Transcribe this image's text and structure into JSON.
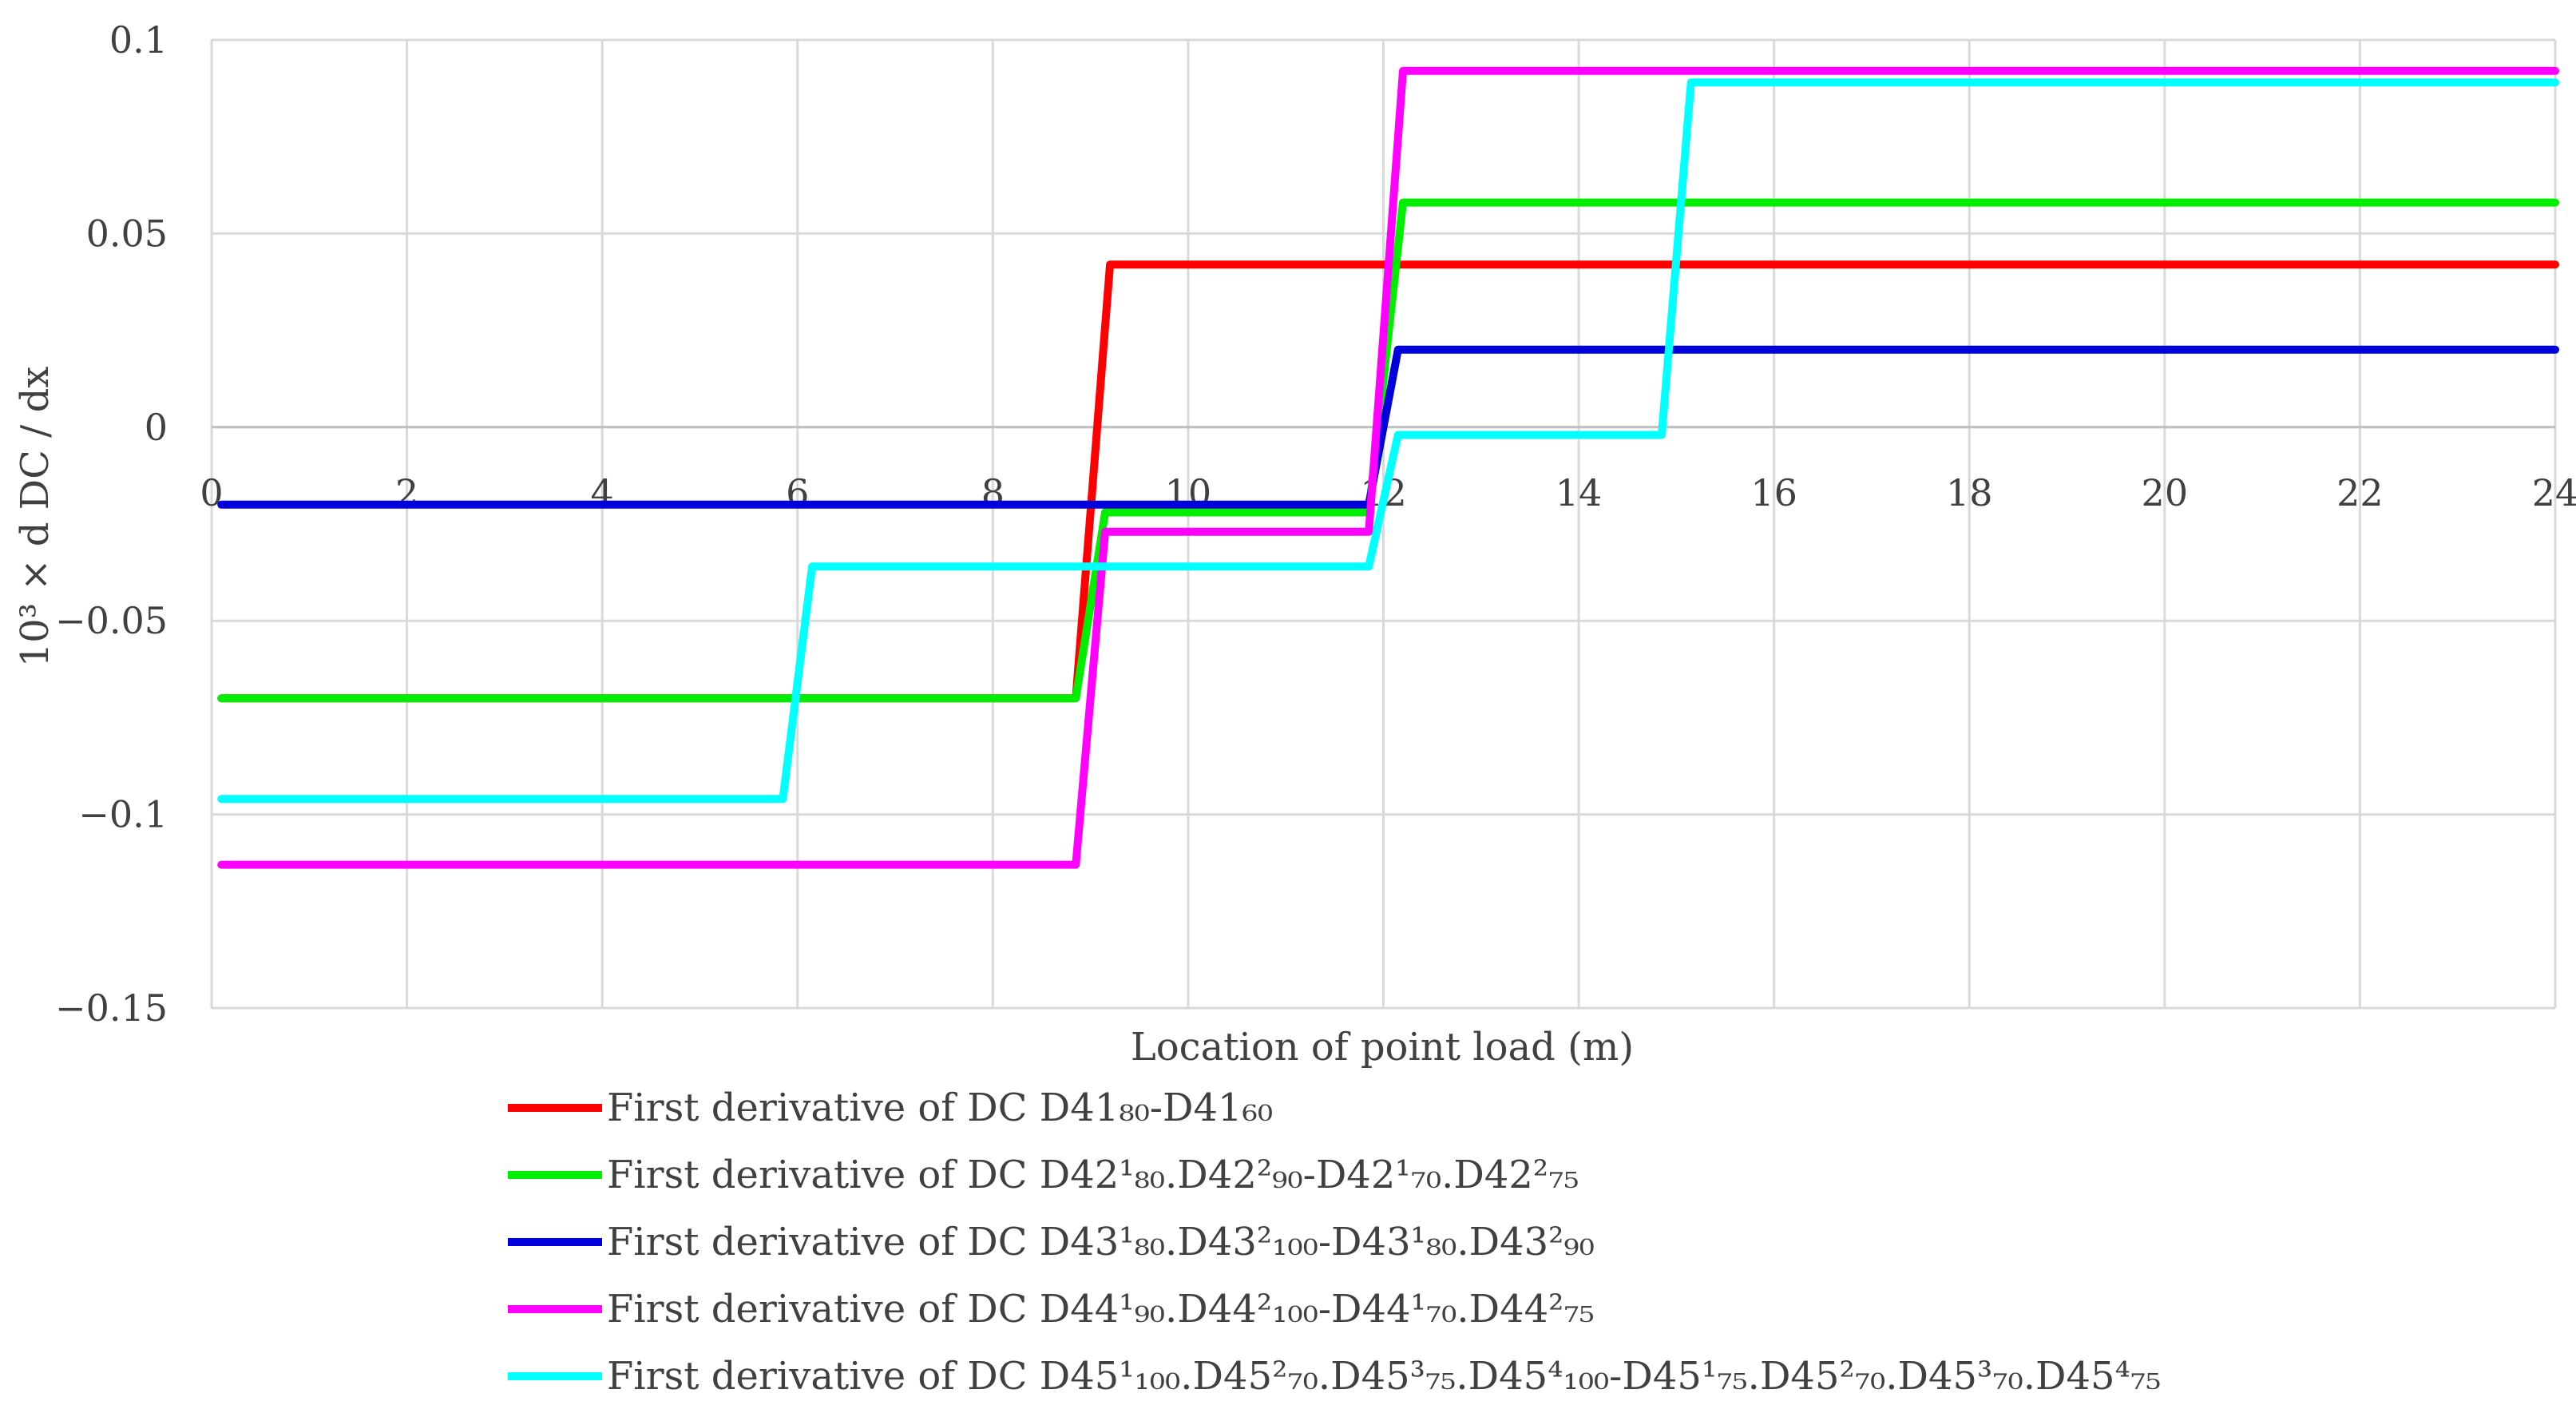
{
  "chart_data": {
    "type": "line",
    "xlabel": "Location of point load (m)",
    "ylabel": "10³ × d DC / dx",
    "xlim": [
      0,
      24
    ],
    "ylim": [
      -0.15,
      0.1
    ],
    "xticks": [
      0,
      2,
      4,
      6,
      8,
      10,
      12,
      14,
      16,
      18,
      20,
      22,
      24
    ],
    "yticks": [
      -0.15,
      -0.1,
      -0.05,
      0,
      0.05,
      0.1
    ],
    "ytick_labels": [
      "−0.15",
      "−0.1",
      "−0.05",
      "0",
      "0.05",
      "0.1"
    ],
    "grid": true,
    "legend_position": "bottom",
    "series": [
      {
        "name": "First derivative of DC D41₈₀-D41₆₀",
        "color": "#ff0000",
        "x": [
          0.1,
          8.85,
          9.2,
          24
        ],
        "y": [
          -0.07,
          -0.07,
          0.042,
          0.042
        ]
      },
      {
        "name": "First derivative of DC D42¹₈₀.D42²₉₀-D42¹₇₀.D42²₇₅",
        "color": "#00ee00",
        "x": [
          0.1,
          8.85,
          9.15,
          11.85,
          12.2,
          24
        ],
        "y": [
          -0.07,
          -0.07,
          -0.022,
          -0.022,
          0.058,
          0.058
        ]
      },
      {
        "name": "First derivative of DC D43¹₈₀.D43²₁₀₀-D43¹₈₀.D43²₉₀",
        "color": "#0000dd",
        "x": [
          0.1,
          11.85,
          12.15,
          24
        ],
        "y": [
          -0.02,
          -0.02,
          0.02,
          0.02
        ]
      },
      {
        "name": "First derivative of DC D44¹₉₀.D44²₁₀₀-D44¹₇₀.D44²₇₅",
        "color": "#ff00ff",
        "x": [
          0.1,
          8.85,
          9.15,
          11.85,
          12.2,
          24
        ],
        "y": [
          -0.113,
          -0.113,
          -0.027,
          -0.027,
          0.092,
          0.092
        ]
      },
      {
        "name": "First derivative of DC D45¹₁₀₀.D45²₇₀.D45³₇₅.D45⁴₁₀₀-D45¹₇₅.D45²₇₀.D45³₇₀.D45⁴₇₅",
        "color": "#00ffff",
        "x": [
          0.1,
          5.85,
          6.15,
          11.85,
          12.15,
          14.85,
          15.15,
          24
        ],
        "y": [
          -0.096,
          -0.096,
          -0.036,
          -0.036,
          -0.002,
          -0.002,
          0.089,
          0.089
        ]
      }
    ]
  }
}
